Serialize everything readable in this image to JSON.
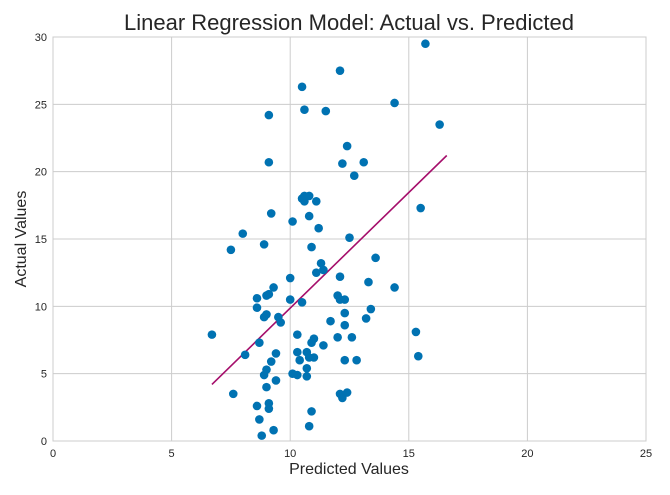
{
  "chart_data": {
    "type": "scatter",
    "title": "Linear Regression Model: Actual vs. Predicted",
    "xlabel": "Predicted Values",
    "ylabel": "Actual Values",
    "xlim": [
      0,
      25
    ],
    "ylim": [
      0,
      30
    ],
    "xticks": [
      0,
      5,
      10,
      15,
      20,
      25
    ],
    "yticks": [
      0,
      5,
      10,
      15,
      20,
      25,
      30
    ],
    "grid": true,
    "colors": {
      "points": "#0072B2",
      "line": "#A50E6B",
      "grid": "#cccccc"
    },
    "points": [
      [
        6.7,
        7.9
      ],
      [
        7.5,
        14.2
      ],
      [
        7.6,
        3.5
      ],
      [
        8.0,
        15.4
      ],
      [
        8.1,
        6.4
      ],
      [
        8.6,
        2.6
      ],
      [
        8.6,
        10.6
      ],
      [
        8.6,
        9.9
      ],
      [
        8.7,
        1.6
      ],
      [
        8.7,
        7.3
      ],
      [
        8.8,
        0.4
      ],
      [
        8.9,
        14.6
      ],
      [
        8.9,
        9.2
      ],
      [
        8.9,
        4.9
      ],
      [
        9.0,
        9.4
      ],
      [
        9.0,
        5.3
      ],
      [
        9.0,
        4.0
      ],
      [
        9.0,
        10.8
      ],
      [
        9.1,
        24.2
      ],
      [
        9.1,
        20.7
      ],
      [
        9.1,
        10.9
      ],
      [
        9.1,
        2.8
      ],
      [
        9.1,
        2.4
      ],
      [
        9.2,
        16.9
      ],
      [
        9.2,
        5.9
      ],
      [
        9.3,
        0.8
      ],
      [
        9.3,
        11.4
      ],
      [
        9.4,
        6.5
      ],
      [
        9.4,
        4.5
      ],
      [
        9.5,
        9.2
      ],
      [
        9.6,
        8.8
      ],
      [
        10.0,
        12.1
      ],
      [
        10.0,
        10.5
      ],
      [
        10.1,
        16.3
      ],
      [
        10.1,
        5.0
      ],
      [
        10.3,
        7.9
      ],
      [
        10.3,
        6.6
      ],
      [
        10.3,
        4.9
      ],
      [
        10.4,
        6.0
      ],
      [
        10.5,
        26.3
      ],
      [
        10.5,
        18.0
      ],
      [
        10.5,
        10.3
      ],
      [
        10.6,
        24.6
      ],
      [
        10.6,
        17.8
      ],
      [
        10.6,
        18.2
      ],
      [
        10.7,
        6.6
      ],
      [
        10.7,
        5.4
      ],
      [
        10.7,
        4.8
      ],
      [
        10.8,
        18.2
      ],
      [
        10.8,
        16.7
      ],
      [
        10.8,
        6.2
      ],
      [
        10.8,
        1.1
      ],
      [
        10.9,
        14.4
      ],
      [
        10.9,
        7.3
      ],
      [
        10.9,
        2.2
      ],
      [
        11.0,
        7.6
      ],
      [
        11.0,
        6.2
      ],
      [
        11.1,
        17.8
      ],
      [
        11.1,
        12.5
      ],
      [
        11.2,
        15.8
      ],
      [
        11.3,
        13.2
      ],
      [
        11.4,
        12.7
      ],
      [
        11.4,
        7.1
      ],
      [
        11.5,
        24.5
      ],
      [
        11.7,
        8.9
      ],
      [
        12.0,
        10.8
      ],
      [
        12.0,
        7.7
      ],
      [
        12.1,
        27.5
      ],
      [
        12.1,
        12.2
      ],
      [
        12.1,
        10.5
      ],
      [
        12.1,
        3.5
      ],
      [
        12.2,
        20.6
      ],
      [
        12.2,
        3.2
      ],
      [
        12.3,
        9.5
      ],
      [
        12.3,
        8.6
      ],
      [
        12.3,
        10.5
      ],
      [
        12.3,
        6.0
      ],
      [
        12.4,
        21.9
      ],
      [
        12.4,
        3.6
      ],
      [
        12.5,
        15.1
      ],
      [
        12.6,
        7.7
      ],
      [
        12.7,
        19.7
      ],
      [
        12.8,
        6.0
      ],
      [
        13.1,
        20.7
      ],
      [
        13.2,
        9.1
      ],
      [
        13.3,
        11.8
      ],
      [
        13.4,
        9.8
      ],
      [
        13.6,
        13.6
      ],
      [
        14.4,
        25.1
      ],
      [
        14.4,
        11.4
      ],
      [
        15.3,
        8.1
      ],
      [
        15.4,
        6.3
      ],
      [
        15.5,
        17.3
      ],
      [
        15.7,
        29.5
      ],
      [
        16.3,
        23.5
      ]
    ],
    "regression_line": {
      "x": [
        6.7,
        16.6
      ],
      "y": [
        4.2,
        21.2
      ]
    }
  }
}
